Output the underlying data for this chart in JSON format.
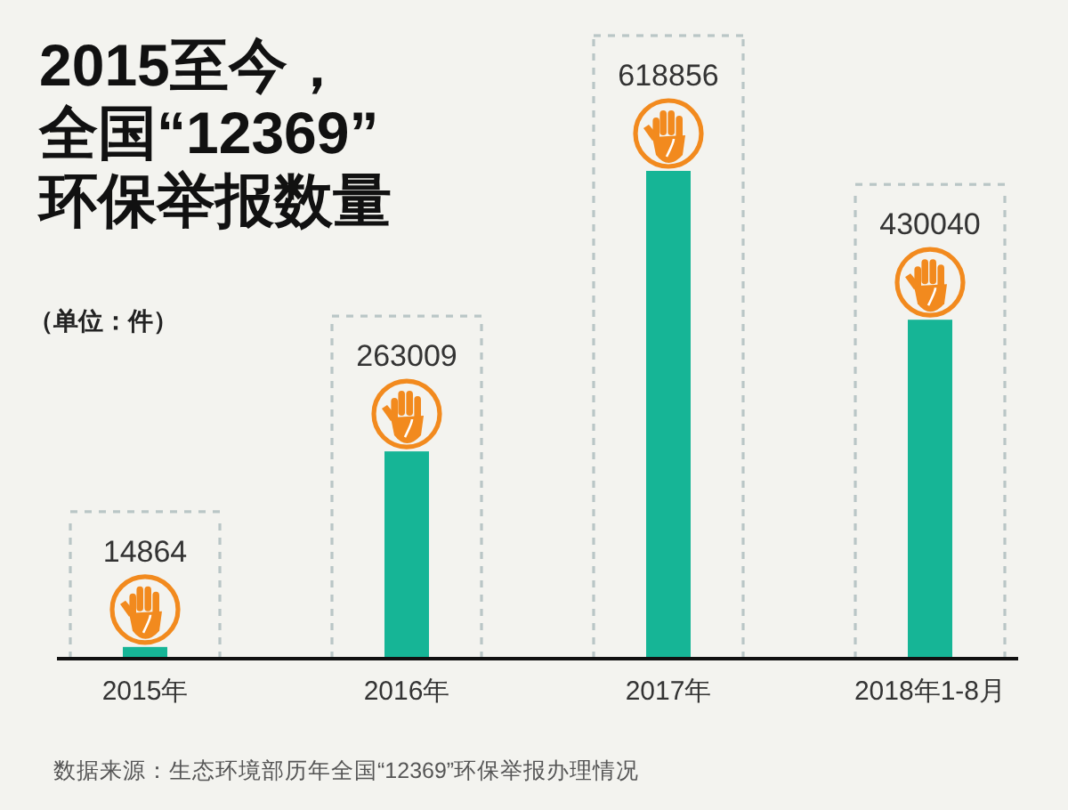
{
  "chart_data": {
    "type": "bar",
    "title": "2015至今，全国“12369”环保举报数量",
    "ylabel": "（单位：件）",
    "categories": [
      "2015年",
      "2016年",
      "2017年",
      "2018年1-8月"
    ],
    "values": [
      14864,
      263009,
      618856,
      430040
    ],
    "color": "#16b596",
    "data_labels": true,
    "annotations": [
      "数据来源：生态环境部历年全国“12369”环保举报办理情况"
    ]
  }
}
